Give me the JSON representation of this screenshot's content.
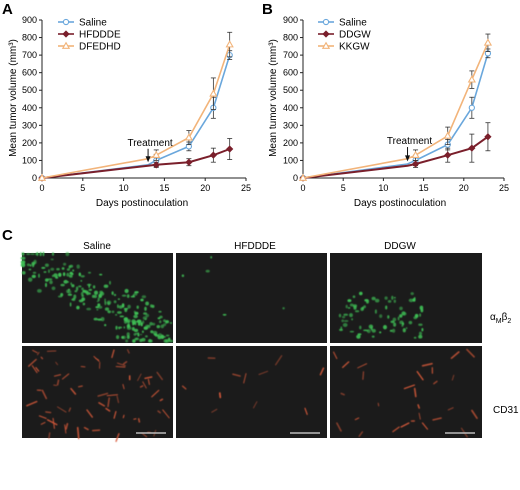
{
  "panels": {
    "a": "A",
    "b": "B",
    "c": "C"
  },
  "chart_data": [
    {
      "type": "line",
      "panel": "A",
      "title": "",
      "xlabel": "Days postinoculation",
      "ylabel": "Mean tumor volume (mm³)",
      "xlim": [
        0,
        25
      ],
      "ylim": [
        0,
        900
      ],
      "xticks": [
        0,
        5,
        10,
        15,
        20,
        25
      ],
      "yticks": [
        0,
        100,
        200,
        300,
        400,
        500,
        600,
        700,
        800,
        900
      ],
      "legend": "top-left",
      "grid": false,
      "annotation": {
        "text": "Treatment",
        "x": 13,
        "arrow_from": 155,
        "arrow_to": 90
      },
      "series": [
        {
          "name": "Saline",
          "color": "#6aa7dc",
          "marker": "circle",
          "x": [
            0,
            13,
            14,
            18,
            21,
            23
          ],
          "y": [
            0,
            75,
            100,
            180,
            400,
            700
          ],
          "err": [
            0,
            0,
            35,
            25,
            60,
            25
          ]
        },
        {
          "name": "HFDDDE",
          "color": "#7a1f2b",
          "marker": "diamond",
          "x": [
            0,
            13,
            14,
            18,
            21,
            23
          ],
          "y": [
            0,
            70,
            75,
            90,
            130,
            165
          ],
          "err": [
            0,
            0,
            15,
            20,
            40,
            60
          ]
        },
        {
          "name": "DFEDHD",
          "color": "#f2b47a",
          "marker": "triangle",
          "x": [
            0,
            13,
            14,
            18,
            21,
            23
          ],
          "y": [
            0,
            110,
            130,
            230,
            480,
            760
          ],
          "err": [
            0,
            0,
            30,
            40,
            90,
            70
          ]
        }
      ]
    },
    {
      "type": "line",
      "panel": "B",
      "title": "",
      "xlabel": "Days postinoculation",
      "ylabel": "Mean tumor volume (mm³)",
      "xlim": [
        0,
        25
      ],
      "ylim": [
        0,
        900
      ],
      "xticks": [
        0,
        5,
        10,
        15,
        20,
        25
      ],
      "yticks": [
        0,
        100,
        200,
        300,
        400,
        500,
        600,
        700,
        800,
        900
      ],
      "legend": "top-left",
      "grid": false,
      "annotation": {
        "text": "Treatment",
        "x": 13,
        "arrow_from": 165,
        "arrow_to": 95
      },
      "series": [
        {
          "name": "Saline",
          "color": "#6aa7dc",
          "marker": "circle",
          "x": [
            0,
            13,
            14,
            18,
            21,
            23
          ],
          "y": [
            0,
            80,
            100,
            190,
            400,
            710
          ],
          "err": [
            0,
            0,
            30,
            30,
            60,
            25
          ]
        },
        {
          "name": "DDGW",
          "color": "#7a1f2b",
          "marker": "diamond",
          "x": [
            0,
            13,
            14,
            18,
            21,
            23
          ],
          "y": [
            0,
            70,
            80,
            130,
            170,
            235
          ],
          "err": [
            0,
            0,
            20,
            40,
            80,
            80
          ]
        },
        {
          "name": "KKGW",
          "color": "#f2b47a",
          "marker": "triangle",
          "x": [
            0,
            13,
            14,
            18,
            21,
            23
          ],
          "y": [
            0,
            110,
            130,
            240,
            560,
            770
          ],
          "err": [
            0,
            0,
            30,
            50,
            50,
            50
          ]
        }
      ]
    }
  ],
  "micrographs": {
    "columns": [
      "Saline",
      "HFDDDE",
      "DDGW"
    ],
    "rows": [
      {
        "label_main": "α",
        "label_sub1": "M",
        "label_mid": "β",
        "label_sub2": "2",
        "stain_color": "#3fbf55"
      },
      {
        "label_main": "CD31",
        "stain_color": "#d85a3a"
      }
    ],
    "signal_levels": [
      [
        0.9,
        0.02,
        0.3
      ],
      [
        0.6,
        0.1,
        0.25
      ]
    ],
    "scale_bar_color": "#bbbbbb"
  }
}
